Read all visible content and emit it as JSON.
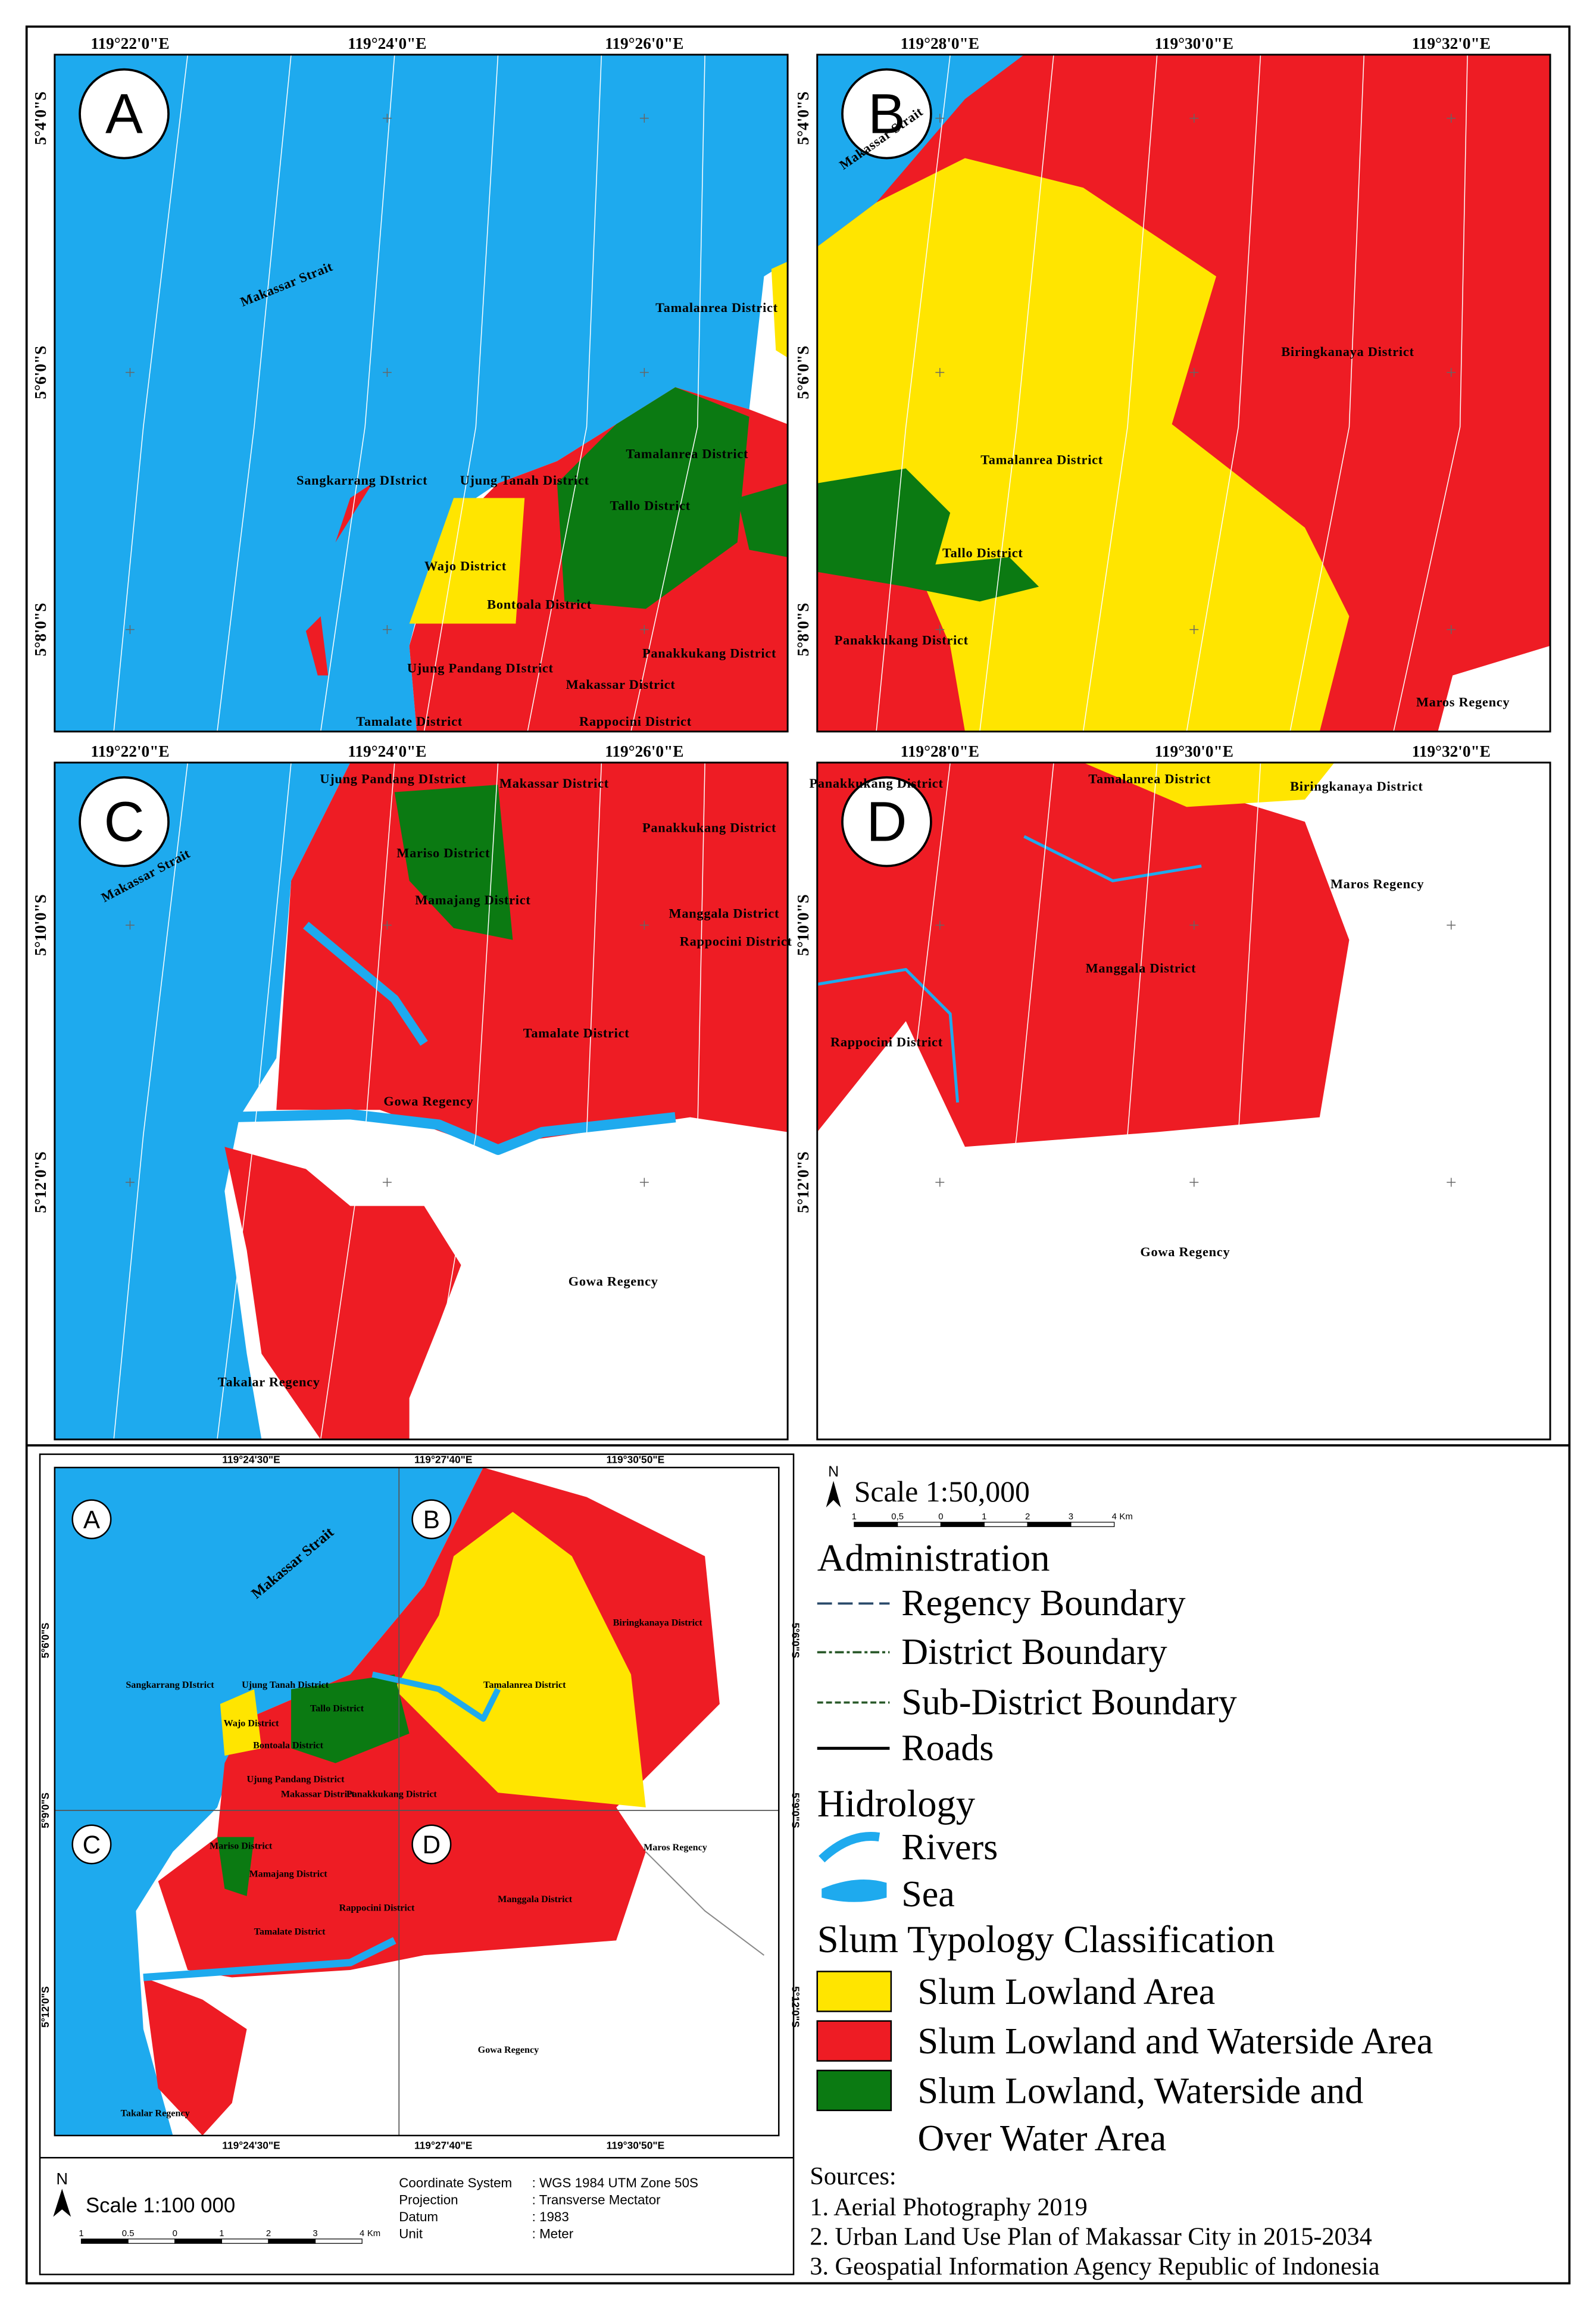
{
  "panels": [
    {
      "letter": "A",
      "x_labels": [
        "119°22'0\"E",
        "119°24'0\"E",
        "119°26'0\"E"
      ],
      "y_labels": [
        "5°4'0\"S",
        "5°6'0\"S",
        "5°8'0\"S"
      ],
      "places": [
        "Makassar Strait",
        "Tamalanrea District",
        "Sangkarrang DIstrict",
        "Ujung Tanah District",
        "Tamalanrea District",
        "Tallo District",
        "Wajo District",
        "Bontoala District",
        "Panakkukang District",
        "Ujung Pandang DIstrict",
        "Makassar District",
        "Tamalate District",
        "Rappocini District"
      ]
    },
    {
      "letter": "B",
      "x_labels": [
        "119°28'0\"E",
        "119°30'0\"E",
        "119°32'0\"E"
      ],
      "y_labels": [
        "5°4'0\"S",
        "5°6'0\"S",
        "5°8'0\"S"
      ],
      "places": [
        "Makassar Strait",
        "Biringkanaya District",
        "Tamalanrea District",
        "Tallo District",
        "Panakkukang District",
        "Maros Regency"
      ]
    },
    {
      "letter": "C",
      "x_labels": [
        "119°22'0\"E",
        "119°24'0\"E",
        "119°26'0\"E"
      ],
      "y_labels": [
        "5°10'0\"S",
        "5°12'0\"S"
      ],
      "places": [
        "Makassar Strait",
        "Ujung Pandang DIstrict",
        "Makassar District",
        "Panakkukang District",
        "Mariso District",
        "Mamajang District",
        "Manggala District",
        "Rappocini District",
        "Tamalate District",
        "Gowa Regency",
        "Gowa Regency",
        "Takalar Regency"
      ]
    },
    {
      "letter": "D",
      "x_labels": [
        "119°28'0\"E",
        "119°30'0\"E",
        "119°32'0\"E"
      ],
      "y_labels": [
        "5°10'0\"S",
        "5°12'0\"S"
      ],
      "places": [
        "Panakkukang District",
        "Tamalanrea District",
        "Biringkanaya District",
        "Maros Regency",
        "Manggala District",
        "Rappocini District",
        "Gowa Regency"
      ]
    }
  ],
  "inset": {
    "letters": [
      "A",
      "B",
      "C",
      "D"
    ],
    "x_labels": [
      "119°24'30\"E",
      "119°27'40\"E",
      "119°30'50\"E"
    ],
    "y_labels": [
      "5°6'0\"S",
      "5°9'0\"S",
      "5°12'0\"S"
    ],
    "places": [
      "Makassar Strait",
      "Biringkanaya District",
      "Sangkarrang DIstrict",
      "Ujung Tanah District",
      "Tamalanrea District",
      "Tallo District",
      "Wajo District",
      "Bontoala District",
      "Ujung Pandang District",
      "Makassar District",
      "Panakkukang District",
      "Maros Regency",
      "Mariso District",
      "Mamajang District",
      "Rappocini District",
      "Manggala District",
      "Tamalate District",
      "Gowa Regency",
      "Takalar Regency"
    ],
    "north": "N",
    "scale": "Scale  1:100 000",
    "scale_ticks": [
      "1",
      "0.5",
      "0",
      "1",
      "2",
      "3",
      "4",
      "Km"
    ],
    "info": [
      {
        "label": "Coordinate System",
        "value": ": WGS 1984 UTM Zone 50S"
      },
      {
        "label": "Projection",
        "value": ": Transverse Mectator"
      },
      {
        "label": "Datum",
        "value": ": 1983"
      },
      {
        "label": "Unit",
        "value": ": Meter"
      }
    ]
  },
  "legend": {
    "north": "N",
    "scale": "Scale 1:50,000",
    "scale_ticks": [
      "1",
      "0,5",
      "0",
      "1",
      "2",
      "3",
      "4",
      "Km"
    ],
    "administration": {
      "title": "Administration",
      "items": [
        "Regency Boundary",
        "District Boundary",
        "Sub-District Boundary",
        "Roads"
      ]
    },
    "hidrology": {
      "title": "Hidrology",
      "items": [
        "Rivers",
        "Sea"
      ]
    },
    "classification": {
      "title": "Slum Typology Classification",
      "items": [
        {
          "name": "Slum Lowland Area",
          "color": "#ffe500"
        },
        {
          "name": "Slum Lowland and Waterside Area",
          "color": "#ee1c24"
        },
        {
          "name": "Slum Lowland, Waterside and",
          "name2": "Over Water Area",
          "color": "#0b7a12"
        }
      ]
    },
    "sources": {
      "title": "Sources:",
      "items": [
        "1. Aerial Photography 2019",
        "2. Urban Land Use Plan of  Makassar City in 2015-2034",
        "3. Geospatial Information Agency Republic of Indonesia"
      ]
    }
  },
  "colors": {
    "sea": "#1eaaee",
    "yellow": "#ffe500",
    "red": "#ee1c24",
    "green": "#0b7a12"
  }
}
